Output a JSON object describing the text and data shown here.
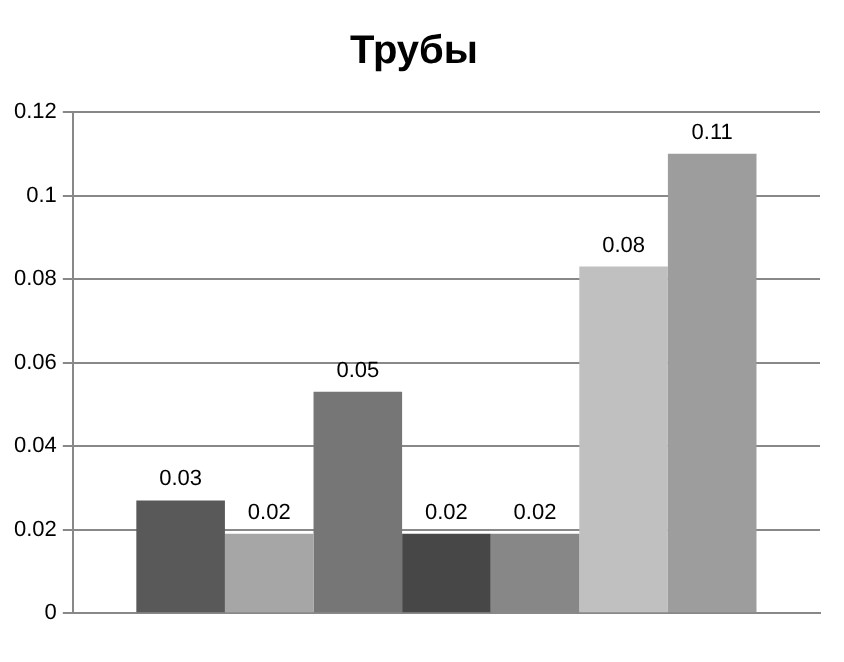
{
  "chart_data": {
    "type": "bar",
    "title": "Трубы",
    "categories": [
      null
    ],
    "series": [
      {
        "color": "#595959",
        "values": [
          0.027
        ],
        "value_labels": [
          "0.03"
        ]
      },
      {
        "color": "#a6a6a6",
        "values": [
          0.019
        ],
        "value_labels": [
          "0.02"
        ]
      },
      {
        "color": "#767676",
        "values": [
          0.053
        ],
        "value_labels": [
          "0.05"
        ]
      },
      {
        "color": "#474747",
        "values": [
          0.019
        ],
        "value_labels": [
          "0.02"
        ]
      },
      {
        "color": "#878787",
        "values": [
          0.019
        ],
        "value_labels": [
          "0.02"
        ]
      },
      {
        "color": "#c0c0c0",
        "values": [
          0.083
        ],
        "value_labels": [
          "0.08"
        ]
      },
      {
        "color": "#9d9d9d",
        "values": [
          0.11
        ],
        "value_labels": [
          "0.11"
        ]
      }
    ],
    "ylim": [
      0,
      0.12
    ],
    "yticks": [
      0,
      0.02,
      0.04,
      0.06,
      0.08,
      0.1,
      0.12
    ],
    "grid": "y",
    "legend": false
  }
}
